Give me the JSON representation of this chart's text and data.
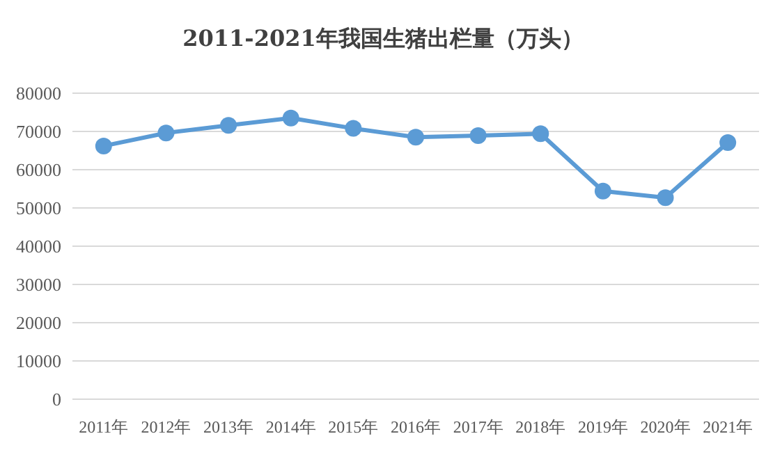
{
  "chart_data": {
    "type": "line",
    "title": "2011-2021年我国生猪出栏量（万头）",
    "categories": [
      "2011年",
      "2012年",
      "2013年",
      "2014年",
      "2015年",
      "2016年",
      "2017年",
      "2018年",
      "2019年",
      "2020年",
      "2021年"
    ],
    "series": [
      {
        "color": "#5b9bd5",
        "values": [
          66200,
          69600,
          71600,
          73500,
          70800,
          68500,
          68900,
          69400,
          54400,
          52700,
          67100
        ]
      }
    ],
    "ylim": [
      0,
      80000
    ],
    "yticks": [
      0,
      10000,
      20000,
      30000,
      40000,
      50000,
      60000,
      70000,
      80000
    ],
    "grid": "y",
    "marker": "circle",
    "line_style": "solid"
  }
}
